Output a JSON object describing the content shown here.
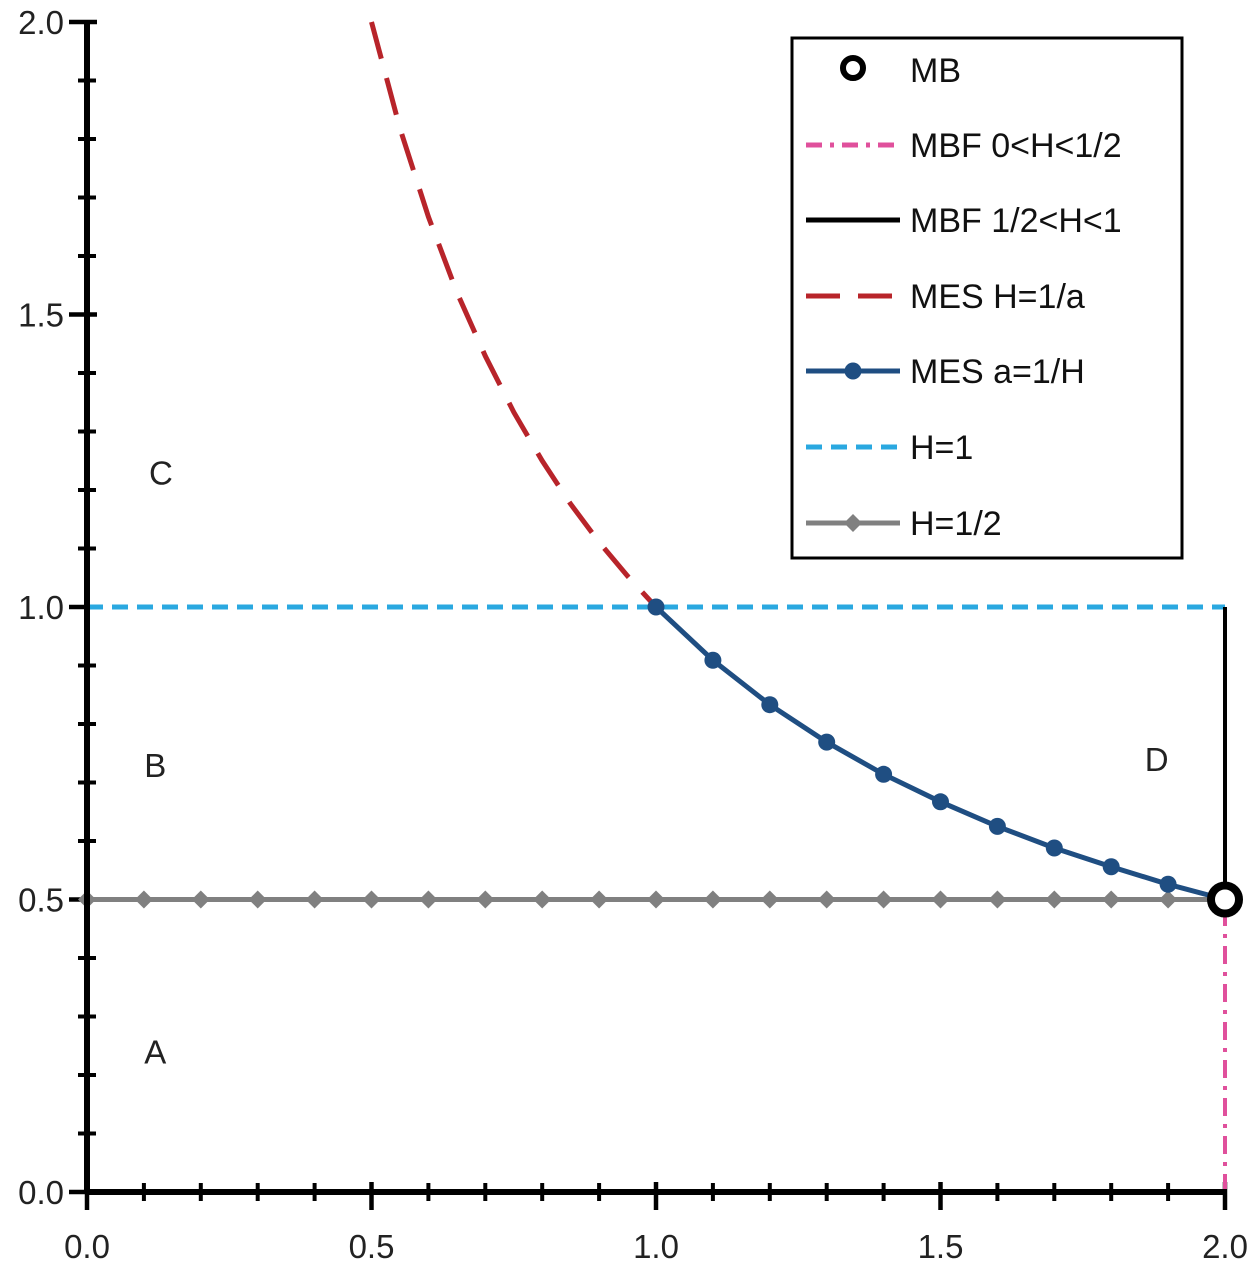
{
  "chart_data": {
    "type": "line",
    "title": "",
    "xlabel": "",
    "ylabel": "",
    "xlim": [
      0,
      2
    ],
    "ylim": [
      0,
      2
    ],
    "x_ticks": [
      "0.0",
      "0.5",
      "1.0",
      "1.5",
      "2.0"
    ],
    "y_ticks": [
      "0.0",
      "0.5",
      "1.0",
      "1.5",
      "2.0"
    ],
    "x_tick_values": [
      0,
      0.5,
      1,
      1.5,
      2
    ],
    "y_tick_values": [
      0,
      0.5,
      1,
      1.5,
      2
    ],
    "minor_tick_step": 0.1,
    "grid": false,
    "legend_position": "top-right",
    "region_labels": [
      {
        "text": "A",
        "x": 0.12,
        "y": 0.24
      },
      {
        "text": "B",
        "x": 0.12,
        "y": 0.73
      },
      {
        "text": "C",
        "x": 0.13,
        "y": 1.23
      },
      {
        "text": "D",
        "x": 1.88,
        "y": 0.74
      }
    ],
    "series": [
      {
        "name": "MB",
        "style": "open-circle",
        "color": "#000000",
        "points": [
          [
            2.0,
            0.5
          ]
        ]
      },
      {
        "name": "MBF 0<H<1/2",
        "style": "dash-dot",
        "color": "#e0509c",
        "points": [
          [
            2.0,
            0.0
          ],
          [
            2.0,
            0.5
          ]
        ]
      },
      {
        "name": "MBF 1/2<H<1",
        "style": "solid",
        "color": "#000000",
        "points": [
          [
            2.0,
            0.5
          ],
          [
            2.0,
            1.0
          ]
        ]
      },
      {
        "name": "MES H=1/a",
        "style": "long-dash",
        "color": "#b8242a",
        "points": [
          [
            0.5,
            2.0
          ],
          [
            0.55,
            1.818
          ],
          [
            0.6,
            1.667
          ],
          [
            0.65,
            1.538
          ],
          [
            0.7,
            1.429
          ],
          [
            0.75,
            1.333
          ],
          [
            0.8,
            1.25
          ],
          [
            0.85,
            1.176
          ],
          [
            0.9,
            1.111
          ],
          [
            0.95,
            1.053
          ],
          [
            1.0,
            1.0
          ]
        ]
      },
      {
        "name": "MES a=1/H",
        "style": "line-dot",
        "color": "#1f4e82",
        "points": [
          [
            1.0,
            1.0
          ],
          [
            1.1,
            0.909
          ],
          [
            1.2,
            0.833
          ],
          [
            1.3,
            0.769
          ],
          [
            1.4,
            0.714
          ],
          [
            1.5,
            0.667
          ],
          [
            1.6,
            0.625
          ],
          [
            1.7,
            0.588
          ],
          [
            1.8,
            0.556
          ],
          [
            1.9,
            0.526
          ],
          [
            2.0,
            0.5
          ]
        ]
      },
      {
        "name": "H=1",
        "style": "short-dash",
        "color": "#2aa8e0",
        "points": [
          [
            0.0,
            1.0
          ],
          [
            2.0,
            1.0
          ]
        ]
      },
      {
        "name": "H=1/2",
        "style": "line-diamond",
        "color": "#808080",
        "points": [
          [
            0.0,
            0.5
          ],
          [
            0.1,
            0.5
          ],
          [
            0.2,
            0.5
          ],
          [
            0.3,
            0.5
          ],
          [
            0.4,
            0.5
          ],
          [
            0.5,
            0.5
          ],
          [
            0.6,
            0.5
          ],
          [
            0.7,
            0.5
          ],
          [
            0.8,
            0.5
          ],
          [
            0.9,
            0.5
          ],
          [
            1.0,
            0.5
          ],
          [
            1.1,
            0.5
          ],
          [
            1.2,
            0.5
          ],
          [
            1.3,
            0.5
          ],
          [
            1.4,
            0.5
          ],
          [
            1.5,
            0.5
          ],
          [
            1.6,
            0.5
          ],
          [
            1.7,
            0.5
          ],
          [
            1.8,
            0.5
          ],
          [
            1.9,
            0.5
          ],
          [
            2.0,
            0.5
          ]
        ]
      }
    ]
  }
}
